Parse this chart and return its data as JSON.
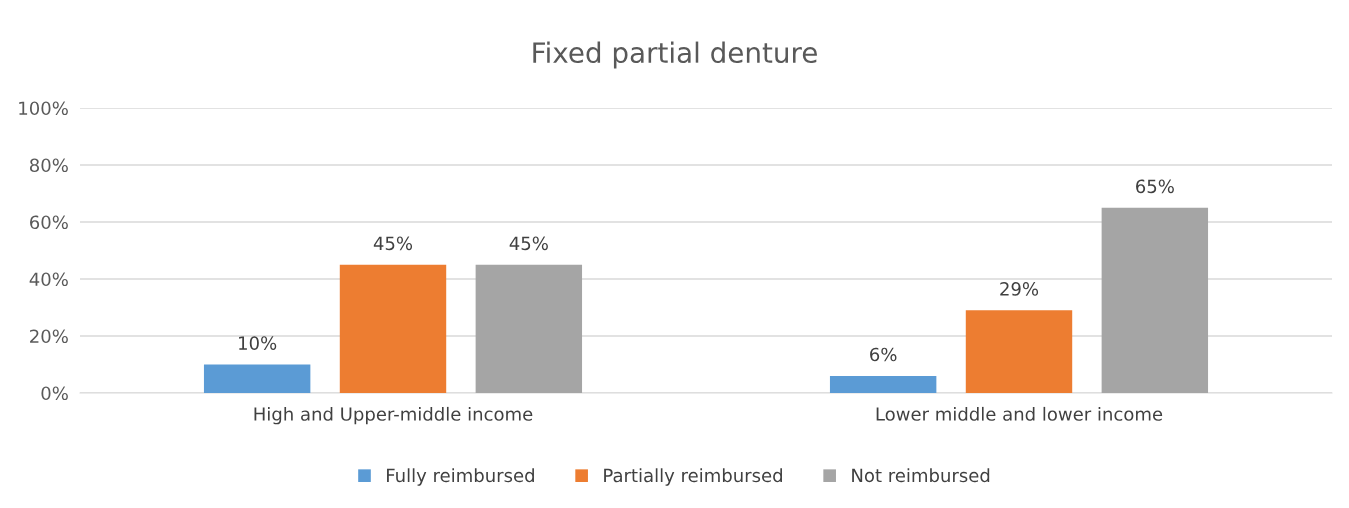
{
  "chart_data": {
    "type": "bar",
    "title": "Fixed partial denture",
    "categories": [
      "High and Upper-middle income",
      "Lower middle and lower income"
    ],
    "series": [
      {
        "name": "Fully reimbursed",
        "color": "#5b9bd5",
        "values": [
          10,
          6
        ]
      },
      {
        "name": "Partially reimbursed",
        "color": "#ed7d31",
        "values": [
          45,
          29
        ]
      },
      {
        "name": "Not reimbursed",
        "color": "#a5a5a5",
        "values": [
          45,
          65
        ]
      }
    ],
    "ylim": [
      0,
      100
    ],
    "yticks": [
      {
        "value": 0,
        "label": "0%"
      },
      {
        "value": 20,
        "label": "20%"
      },
      {
        "value": 40,
        "label": "40%"
      },
      {
        "value": 60,
        "label": "60%"
      },
      {
        "value": 80,
        "label": "80%"
      },
      {
        "value": 100,
        "label": "100%"
      }
    ],
    "value_labels": [
      [
        "10%",
        "6%"
      ],
      [
        "45%",
        "29%"
      ],
      [
        "45%",
        "65%"
      ]
    ],
    "grid": "y",
    "legend": "bottom"
  }
}
